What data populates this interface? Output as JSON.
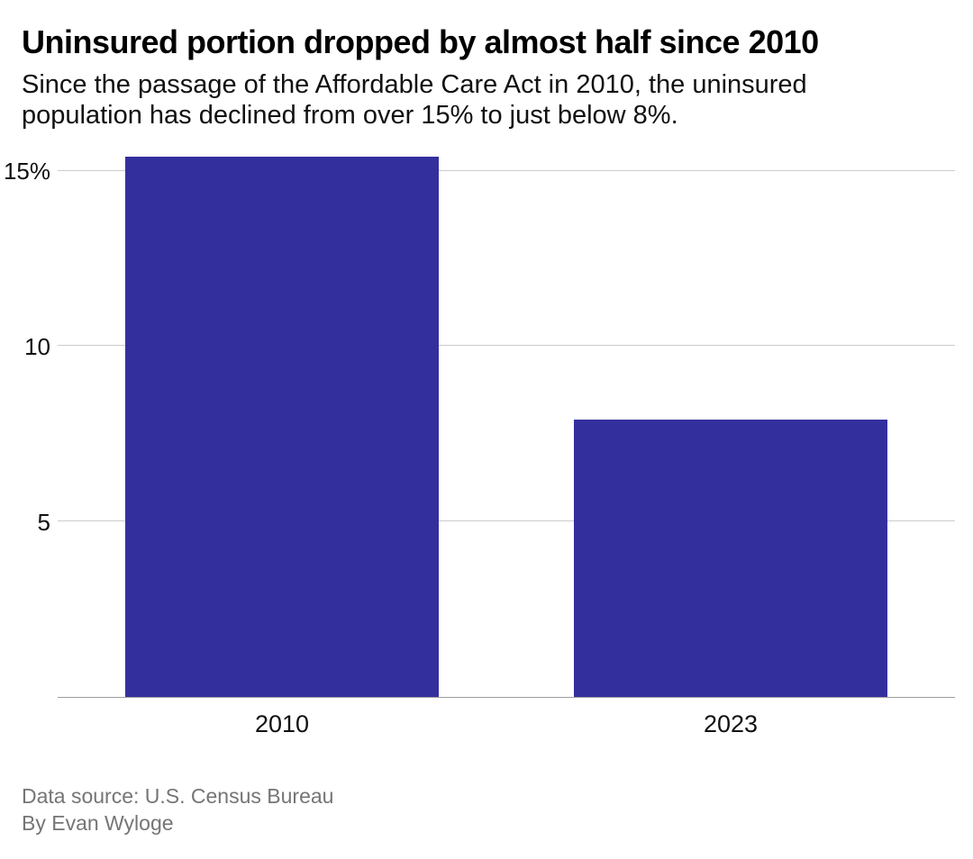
{
  "chart_data": {
    "type": "bar",
    "title": "Uninsured portion dropped by almost half since 2010",
    "subtitle": "Since the passage of the Affordable Care Act in 2010, the uninsured population has declined from over 15% to just below 8%.",
    "categories": [
      "2010",
      "2023"
    ],
    "values": [
      15.4,
      7.9
    ],
    "bar_color": "#33309E",
    "xlabel": "",
    "ylabel": "",
    "ylim": [
      0,
      15.4
    ],
    "yticks": [
      {
        "value": 5,
        "label": "5"
      },
      {
        "value": 10,
        "label": "10"
      },
      {
        "value": 15,
        "label": "15%"
      }
    ],
    "grid": true,
    "legend": "none"
  },
  "footer": {
    "source": "Data source: U.S. Census Bureau",
    "byline": "By Evan Wyloge"
  }
}
